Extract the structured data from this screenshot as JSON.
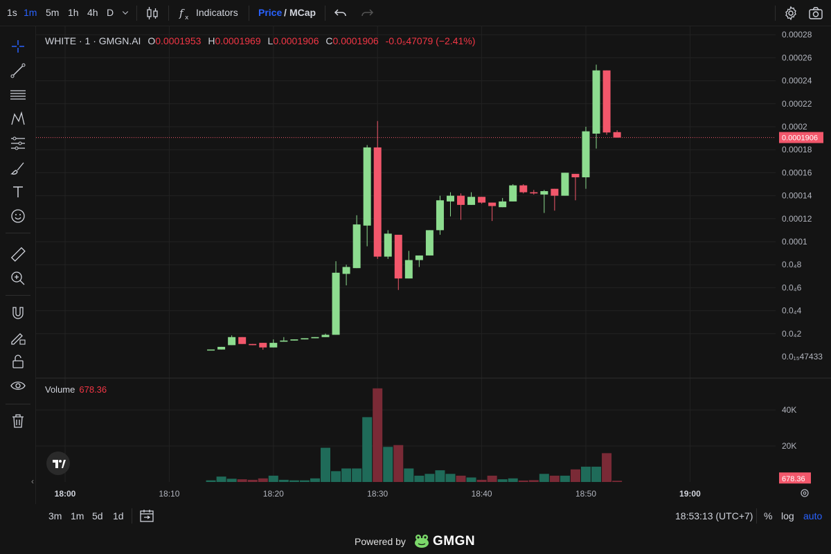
{
  "topbar": {
    "intervals": [
      "1s",
      "1m",
      "5m",
      "1h",
      "4h",
      "D"
    ],
    "active_interval": "1m",
    "indicators_label": "Indicators",
    "price_label": "Price",
    "slash": "/",
    "mcap_label": "MCap"
  },
  "legend": {
    "symbol": "WHITE · 1 · GMGN.AI",
    "o_label": "O",
    "o_value": "0.0001953",
    "h_label": "H",
    "h_value": "0.0001969",
    "l_label": "L",
    "l_value": "0.0001906",
    "c_label": "C",
    "c_value": "0.0001906",
    "change": "-0.0₅47079 (−2.41%)"
  },
  "volume_legend": {
    "label": "Volume",
    "value": "678.36"
  },
  "bottombar": {
    "ranges": [
      "3m",
      "1m",
      "5d",
      "1d"
    ],
    "clock": "18:53:13 (UTC+7)",
    "percent": "%",
    "log": "log",
    "auto": "auto"
  },
  "footer": {
    "powered": "Powered by",
    "brand": "GMGN"
  },
  "colors": {
    "up": "#8ddc8f",
    "down": "#f2576b",
    "vol_up": "#1f6b59",
    "vol_down": "#7a2a36",
    "grid": "#222222",
    "bg": "#141414",
    "accent": "#2962ff"
  },
  "chart_data": {
    "type": "candlestick",
    "price_axis_ticks": [
      "0.00028",
      "0.00026",
      "0.00024",
      "0.00022",
      "0.0002",
      "0.00018",
      "0.00016",
      "0.00014",
      "0.00012",
      "0.0001",
      "0.0₄8",
      "0.0₄6",
      "0.0₄4",
      "0.0₄2",
      "0.0₁₅47433"
    ],
    "price_tick_values": [
      0.00028,
      0.00026,
      0.00024,
      0.00022,
      0.0002,
      0.00018,
      0.00016,
      0.00014,
      0.00012,
      0.0001,
      8e-05,
      6e-05,
      4e-05,
      2e-05,
      0
    ],
    "last_price_label": "0.0001906",
    "last_price": 0.0001906,
    "volume_axis_ticks": [
      "40K",
      "20K"
    ],
    "volume_tick_values": [
      40000,
      20000
    ],
    "last_volume_label": "678.36",
    "time_axis_ticks": [
      "18:00",
      "18:10",
      "18:20",
      "18:30",
      "18:40",
      "18:50",
      "19:00"
    ],
    "time_tick_minutes": [
      0,
      10,
      20,
      30,
      40,
      50,
      60
    ],
    "candles": [
      {
        "t": 14,
        "o": 6.2e-06,
        "h": 6.2e-06,
        "l": 6.2e-06,
        "c": 6.2e-06,
        "v": 900
      },
      {
        "t": 15,
        "o": 6.2e-06,
        "h": 8.5e-06,
        "l": 6.2e-06,
        "c": 8.5e-06,
        "v": 3000
      },
      {
        "t": 16,
        "o": 1e-05,
        "h": 1.85e-05,
        "l": 1e-05,
        "c": 1.7e-05,
        "v": 1800
      },
      {
        "t": 17,
        "o": 1.7e-05,
        "h": 1.7e-05,
        "l": 1.1e-05,
        "c": 1.1e-05,
        "v": 1500
      },
      {
        "t": 18,
        "o": 1.1e-05,
        "h": 1.1e-05,
        "l": 1e-05,
        "c": 1e-05,
        "v": 1200
      },
      {
        "t": 19,
        "o": 1.2e-05,
        "h": 1.2e-05,
        "l": 6e-06,
        "c": 8e-06,
        "v": 2000
      },
      {
        "t": 20,
        "o": 8e-06,
        "h": 1.5e-05,
        "l": 8e-06,
        "c": 1.2e-05,
        "v": 3500
      },
      {
        "t": 21,
        "o": 1.3e-05,
        "h": 1.7e-05,
        "l": 1.3e-05,
        "c": 1.4e-05,
        "v": 1200
      },
      {
        "t": 22,
        "o": 1.4e-05,
        "h": 1.5e-05,
        "l": 1.4e-05,
        "c": 1.5e-05,
        "v": 900
      },
      {
        "t": 23,
        "o": 1.5e-05,
        "h": 1.6e-05,
        "l": 1.5e-05,
        "c": 1.6e-05,
        "v": 900
      },
      {
        "t": 24,
        "o": 1.6e-05,
        "h": 1.7e-05,
        "l": 1.6e-05,
        "c": 1.7e-05,
        "v": 2000
      },
      {
        "t": 25,
        "o": 1.7e-05,
        "h": 2e-05,
        "l": 1.7e-05,
        "c": 1.9e-05,
        "v": 19000
      },
      {
        "t": 26,
        "o": 1.9e-05,
        "h": 8.3e-05,
        "l": 1.9e-05,
        "c": 7.3e-05,
        "v": 6000
      },
      {
        "t": 27,
        "o": 7.2e-05,
        "h": 8e-05,
        "l": 6.2e-05,
        "c": 7.8e-05,
        "v": 7500
      },
      {
        "t": 28,
        "o": 7.7e-05,
        "h": 0.000123,
        "l": 7.7e-05,
        "c": 0.000115,
        "v": 7500
      },
      {
        "t": 29,
        "o": 0.000114,
        "h": 0.000184,
        "l": 9.6e-05,
        "c": 0.000182,
        "v": 36000
      },
      {
        "t": 30,
        "o": 0.000182,
        "h": 0.000205,
        "l": 8.5e-05,
        "c": 8.7e-05,
        "v": 52000
      },
      {
        "t": 31,
        "o": 8.7e-05,
        "h": 0.00011,
        "l": 8.5e-05,
        "c": 0.000107,
        "v": 19500
      },
      {
        "t": 32,
        "o": 0.000106,
        "h": 0.000106,
        "l": 5.8e-05,
        "c": 6.8e-05,
        "v": 20500
      },
      {
        "t": 33,
        "o": 6.8e-05,
        "h": 9.2e-05,
        "l": 6.8e-05,
        "c": 8.4e-05,
        "v": 7500
      },
      {
        "t": 34,
        "o": 8.4e-05,
        "h": 8.8e-05,
        "l": 7.8e-05,
        "c": 8.8e-05,
        "v": 3500
      },
      {
        "t": 35,
        "o": 8.8e-05,
        "h": 0.00011,
        "l": 8.8e-05,
        "c": 0.00011,
        "v": 4500
      },
      {
        "t": 36,
        "o": 0.00011,
        "h": 0.00014,
        "l": 0.000106,
        "c": 0.000136,
        "v": 6500
      },
      {
        "t": 37,
        "o": 0.000135,
        "h": 0.000143,
        "l": 0.000122,
        "c": 0.00014,
        "v": 4500
      },
      {
        "t": 38,
        "o": 0.00014,
        "h": 0.000142,
        "l": 0.000119,
        "c": 0.000132,
        "v": 3500
      },
      {
        "t": 39,
        "o": 0.000132,
        "h": 0.000143,
        "l": 0.000132,
        "c": 0.000139,
        "v": 2500
      },
      {
        "t": 40,
        "o": 0.000139,
        "h": 0.000139,
        "l": 0.000133,
        "c": 0.000134,
        "v": 1200
      },
      {
        "t": 41,
        "o": 0.000134,
        "h": 0.000134,
        "l": 0.000118,
        "c": 0.000131,
        "v": 3500
      },
      {
        "t": 42,
        "o": 0.00013,
        "h": 0.000138,
        "l": 0.00013,
        "c": 0.000135,
        "v": 1500
      },
      {
        "t": 43,
        "o": 0.000135,
        "h": 0.00015,
        "l": 0.000135,
        "c": 0.000149,
        "v": 2000
      },
      {
        "t": 44,
        "o": 0.000149,
        "h": 0.00015,
        "l": 0.000142,
        "c": 0.000143,
        "v": 800
      },
      {
        "t": 45,
        "o": 0.000143,
        "h": 0.000145,
        "l": 0.000141,
        "c": 0.000142,
        "v": 1000
      },
      {
        "t": 46,
        "o": 0.000141,
        "h": 0.000145,
        "l": 0.000125,
        "c": 0.000144,
        "v": 4500
      },
      {
        "t": 47,
        "o": 0.000146,
        "h": 0.000146,
        "l": 0.000127,
        "c": 0.00014,
        "v": 3500
      },
      {
        "t": 48,
        "o": 0.00014,
        "h": 0.00016,
        "l": 0.00014,
        "c": 0.00016,
        "v": 3500
      },
      {
        "t": 49,
        "o": 0.000159,
        "h": 0.000159,
        "l": 0.000136,
        "c": 0.000156,
        "v": 7000
      },
      {
        "t": 50,
        "o": 0.000156,
        "h": 0.0002,
        "l": 0.000146,
        "c": 0.000196,
        "v": 8500
      },
      {
        "t": 51,
        "o": 0.000194,
        "h": 0.000254,
        "l": 0.000181,
        "c": 0.000249,
        "v": 8500
      },
      {
        "t": 52,
        "o": 0.000249,
        "h": 0.000249,
        "l": 0.000193,
        "c": 0.000195,
        "v": 16000
      },
      {
        "t": 53,
        "o": 0.0001953,
        "h": 0.0001969,
        "l": 0.0001906,
        "c": 0.0001906,
        "v": 678.36
      }
    ]
  }
}
